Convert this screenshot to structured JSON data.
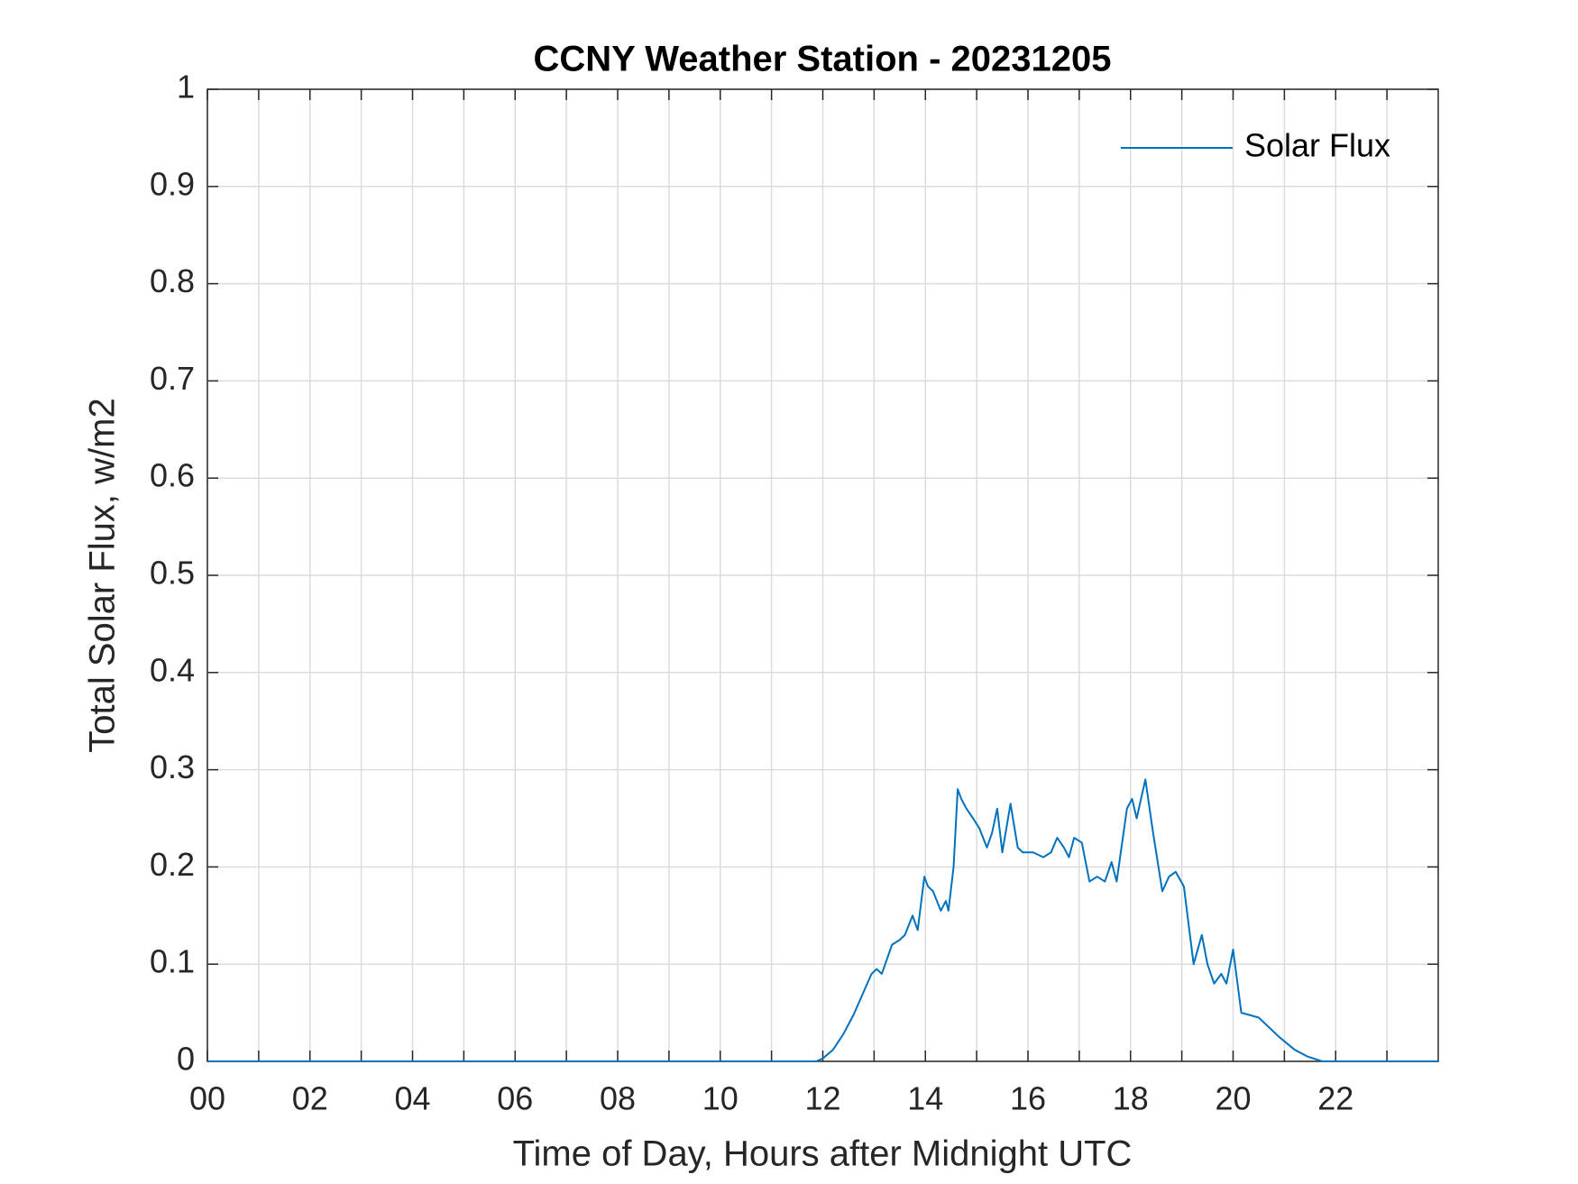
{
  "chart_data": {
    "type": "line",
    "title": "CCNY Weather Station - 20231205",
    "x_label": "Time of Day, Hours after Midnight UTC",
    "y_label": "Total Solar Flux, w/m2",
    "xlim": [
      0,
      24
    ],
    "ylim": [
      0,
      1
    ],
    "xticks": [
      {
        "value": 0,
        "label": "00"
      },
      {
        "value": 2,
        "label": "02"
      },
      {
        "value": 4,
        "label": "04"
      },
      {
        "value": 6,
        "label": "06"
      },
      {
        "value": 8,
        "label": "08"
      },
      {
        "value": 10,
        "label": "10"
      },
      {
        "value": 12,
        "label": "12"
      },
      {
        "value": 14,
        "label": "14"
      },
      {
        "value": 16,
        "label": "16"
      },
      {
        "value": 18,
        "label": "18"
      },
      {
        "value": 20,
        "label": "20"
      },
      {
        "value": 22,
        "label": "22"
      }
    ],
    "xminorticks": [
      1,
      3,
      5,
      7,
      9,
      11,
      13,
      15,
      17,
      19,
      21,
      23
    ],
    "yticks": [
      0,
      0.1,
      0.2,
      0.3,
      0.4,
      0.5,
      0.6,
      0.7,
      0.8,
      0.9,
      1
    ],
    "grid": true,
    "legend": "upper right",
    "series": [
      {
        "name": "Solar Flux",
        "color": "#0072bd",
        "x": [
          0,
          11.87,
          12.0,
          12.2,
          12.4,
          12.6,
          12.8,
          12.95,
          13.05,
          13.15,
          13.35,
          13.5,
          13.6,
          13.75,
          13.85,
          13.98,
          14.05,
          14.15,
          14.3,
          14.4,
          14.45,
          14.55,
          14.63,
          14.7,
          14.8,
          14.93,
          15.05,
          15.2,
          15.3,
          15.4,
          15.5,
          15.66,
          15.8,
          15.9,
          16.1,
          16.3,
          16.45,
          16.57,
          16.7,
          16.8,
          16.9,
          17.05,
          17.2,
          17.35,
          17.5,
          17.63,
          17.73,
          17.93,
          18.03,
          18.12,
          18.29,
          18.44,
          18.62,
          18.75,
          18.88,
          19.04,
          19.23,
          19.39,
          19.5,
          19.63,
          19.77,
          19.87,
          20.0,
          20.16,
          20.3,
          20.5,
          20.7,
          20.9,
          21.2,
          21.45,
          21.74,
          24
        ],
        "values": [
          0,
          0,
          0.003,
          0.012,
          0.028,
          0.048,
          0.072,
          0.09,
          0.095,
          0.09,
          0.12,
          0.125,
          0.13,
          0.15,
          0.135,
          0.19,
          0.18,
          0.175,
          0.155,
          0.165,
          0.155,
          0.2,
          0.28,
          0.27,
          0.26,
          0.25,
          0.24,
          0.22,
          0.235,
          0.26,
          0.215,
          0.265,
          0.22,
          0.215,
          0.215,
          0.21,
          0.215,
          0.23,
          0.22,
          0.21,
          0.23,
          0.225,
          0.185,
          0.19,
          0.185,
          0.205,
          0.185,
          0.26,
          0.27,
          0.25,
          0.29,
          0.235,
          0.175,
          0.19,
          0.195,
          0.18,
          0.1,
          0.13,
          0.1,
          0.08,
          0.09,
          0.08,
          0.115,
          0.05,
          0.048,
          0.045,
          0.035,
          0.025,
          0.012,
          0.005,
          0,
          0
        ]
      }
    ]
  }
}
